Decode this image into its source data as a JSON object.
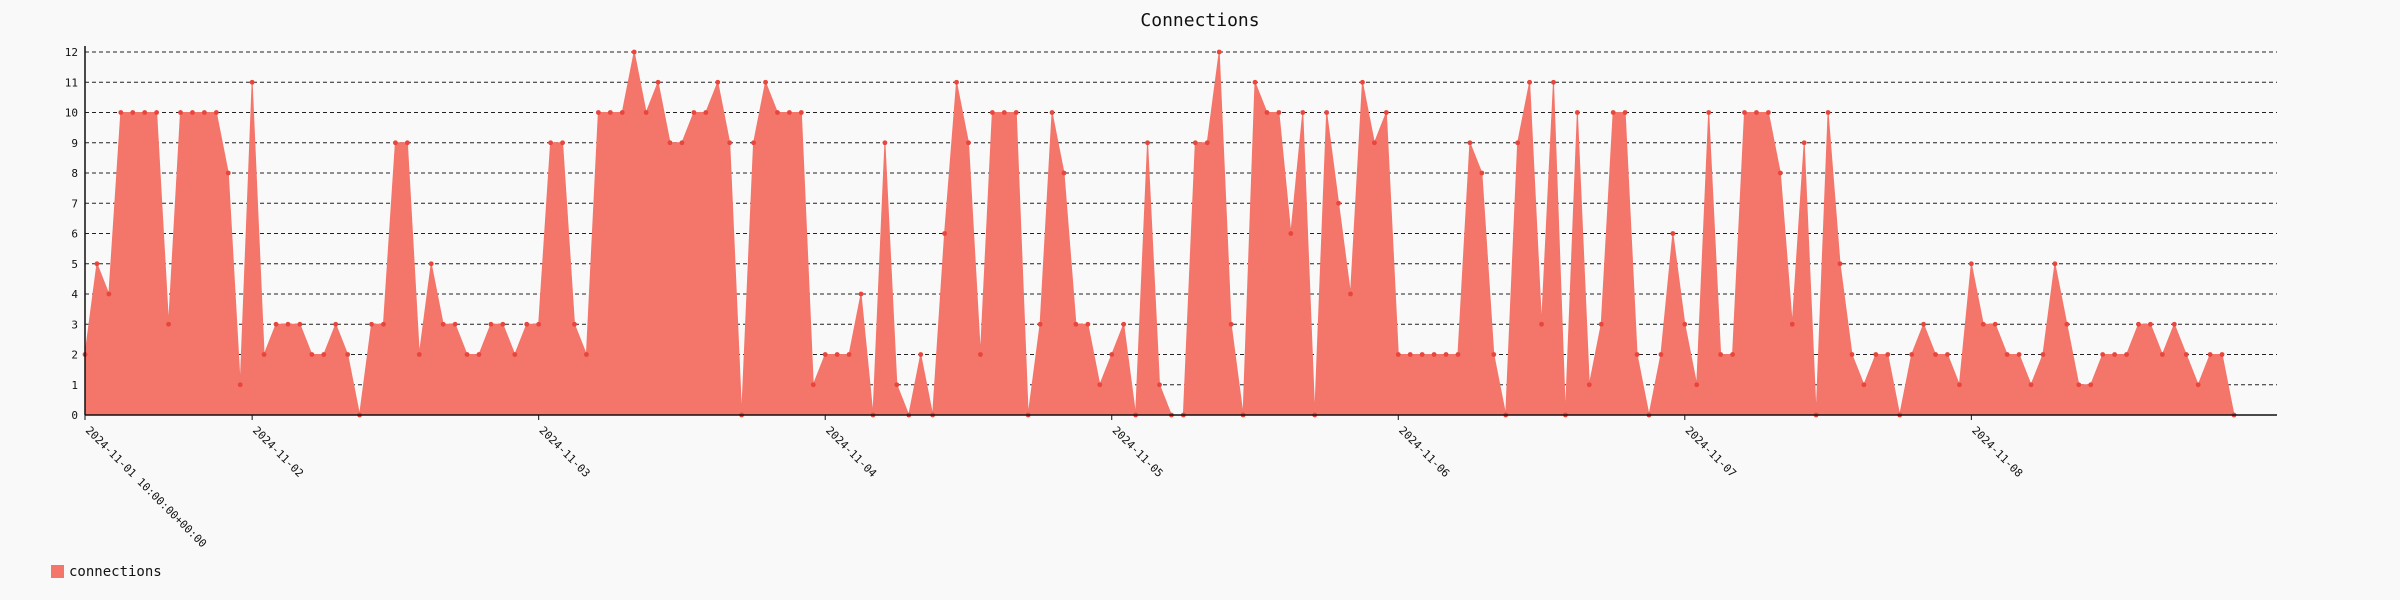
{
  "chart_data": {
    "type": "area",
    "title": "Connections",
    "xlabel": "",
    "ylabel": "",
    "ylim": [
      0,
      12
    ],
    "yticks": [
      0,
      1,
      2,
      3,
      4,
      5,
      6,
      7,
      8,
      9,
      10,
      11,
      12
    ],
    "grid": true,
    "legend_position": "bottom-left",
    "x_ticks": [
      {
        "label": "2024-11-01 10:00:00+00:00",
        "index": 0
      },
      {
        "label": "2024-11-02",
        "index": 14
      },
      {
        "label": "2024-11-03",
        "index": 38
      },
      {
        "label": "2024-11-04",
        "index": 62
      },
      {
        "label": "2024-11-05",
        "index": 86
      },
      {
        "label": "2024-11-06",
        "index": 110
      },
      {
        "label": "2024-11-07",
        "index": 134
      },
      {
        "label": "2024-11-08",
        "index": 158
      }
    ],
    "series": [
      {
        "name": "connections",
        "color": "#f4756a",
        "point_color": "#e8453c",
        "values": [
          2,
          5,
          4,
          10,
          10,
          10,
          10,
          3,
          10,
          10,
          10,
          10,
          8,
          1,
          11,
          2,
          3,
          3,
          3,
          2,
          2,
          3,
          2,
          0,
          3,
          3,
          9,
          9,
          2,
          5,
          3,
          3,
          2,
          2,
          3,
          3,
          2,
          3,
          3,
          9,
          9,
          3,
          2,
          10,
          10,
          10,
          12,
          10,
          11,
          9,
          9,
          10,
          10,
          11,
          9,
          0,
          9,
          11,
          10,
          10,
          10,
          1,
          2,
          2,
          2,
          4,
          0,
          9,
          1,
          0,
          2,
          0,
          6,
          11,
          9,
          2,
          10,
          10,
          10,
          0,
          3,
          10,
          8,
          3,
          3,
          1,
          2,
          3,
          0,
          9,
          1,
          0,
          0,
          9,
          9,
          12,
          3,
          0,
          11,
          10,
          10,
          6,
          10,
          0,
          10,
          7,
          4,
          11,
          9,
          10,
          2,
          2,
          2,
          2,
          2,
          2,
          9,
          8,
          2,
          0,
          9,
          11,
          3,
          11,
          0,
          10,
          1,
          3,
          10,
          10,
          2,
          0,
          2,
          6,
          3,
          1,
          10,
          2,
          2,
          10,
          10,
          10,
          8,
          3,
          9,
          0,
          10,
          5,
          2,
          1,
          2,
          2,
          0,
          2,
          3,
          2,
          2,
          1,
          5,
          3,
          3,
          2,
          2,
          1,
          2,
          5,
          3,
          1,
          1,
          2,
          2,
          2,
          3,
          3,
          2,
          3,
          2,
          1,
          2,
          2,
          0
        ]
      }
    ]
  }
}
